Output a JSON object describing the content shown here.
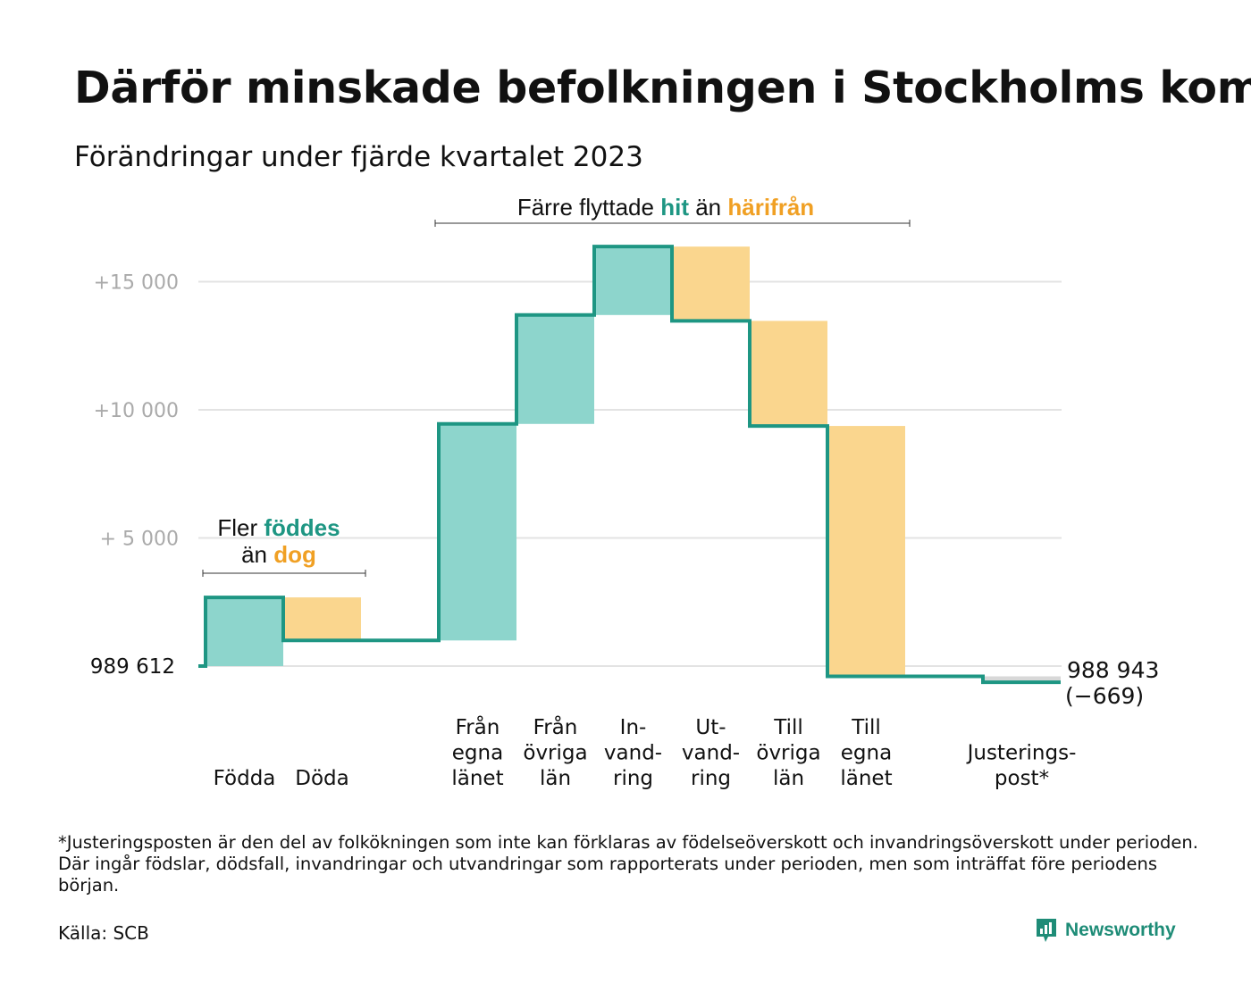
{
  "title": "Därför minskade befolkningen i Stockholms komm",
  "subtitle": "Förändringar under fjärde kvartalet 2023",
  "colors": {
    "in": "#8dd5cc",
    "out": "#fad68e",
    "line": "#1e9683",
    "in_text": "#1e9683",
    "out_text": "#f0a024",
    "adj": "#d8d8d8"
  },
  "chart_data": {
    "type": "waterfall",
    "start_value": 989612,
    "end_value": 988943,
    "net_change": -669,
    "start_label": "989   612",
    "end_label": "988 943",
    "end_change_label": "(−669)",
    "ylim": [
      -700,
      16500
    ],
    "yticks": [
      {
        "value": 5000,
        "label": "+  5  000"
      },
      {
        "value": 10000,
        "label": "+10   000"
      },
      {
        "value": 15000,
        "label": "+15   000"
      }
    ],
    "categories": [
      {
        "label": [
          "Födda"
        ],
        "delta": 2680,
        "kind": "in"
      },
      {
        "label": [
          "Döda"
        ],
        "delta": -1680,
        "kind": "out"
      },
      {
        "label": [],
        "delta": 0,
        "kind": "gap"
      },
      {
        "label": [
          "Från",
          "egna",
          "länet"
        ],
        "delta": 8450,
        "kind": "in"
      },
      {
        "label": [
          "Från",
          "övriga",
          "län"
        ],
        "delta": 4250,
        "kind": "in"
      },
      {
        "label": [
          "In-",
          "vand-",
          "ring"
        ],
        "delta": 2670,
        "kind": "in"
      },
      {
        "label": [
          "Ut-",
          "vand-",
          "ring"
        ],
        "delta": -2900,
        "kind": "out"
      },
      {
        "label": [
          "Till",
          "övriga",
          "län"
        ],
        "delta": -4100,
        "kind": "out"
      },
      {
        "label": [
          "Till",
          "egna",
          "länet"
        ],
        "delta": -9770,
        "kind": "out"
      },
      {
        "label": [],
        "delta": 0,
        "kind": "gap"
      },
      {
        "label": [
          "Justerings-",
          "post*"
        ],
        "delta": -230,
        "kind": "adj"
      }
    ],
    "annotations": {
      "birth": {
        "prefix": "Fler ",
        "highlight1": "föddes",
        "middle": "än ",
        "highlight2": "dog"
      },
      "migration": {
        "prefix": "Färre flyttade ",
        "highlight1": "hit",
        "middle": " än ",
        "highlight2": "härifrån"
      }
    }
  },
  "footnote": "*Justeringsposten är den del av folkökningen som inte kan förklaras av födelseöverskott och invandringsöverskott under perioden. Där ingår födslar, dödsfall, invandringar och utvandringar som rapporterats under perioden, men som inträffat före periodens början.",
  "source": "Källa: SCB",
  "brand": {
    "name": "Newsworthy",
    "icon": "newsworthy-logo-icon"
  }
}
